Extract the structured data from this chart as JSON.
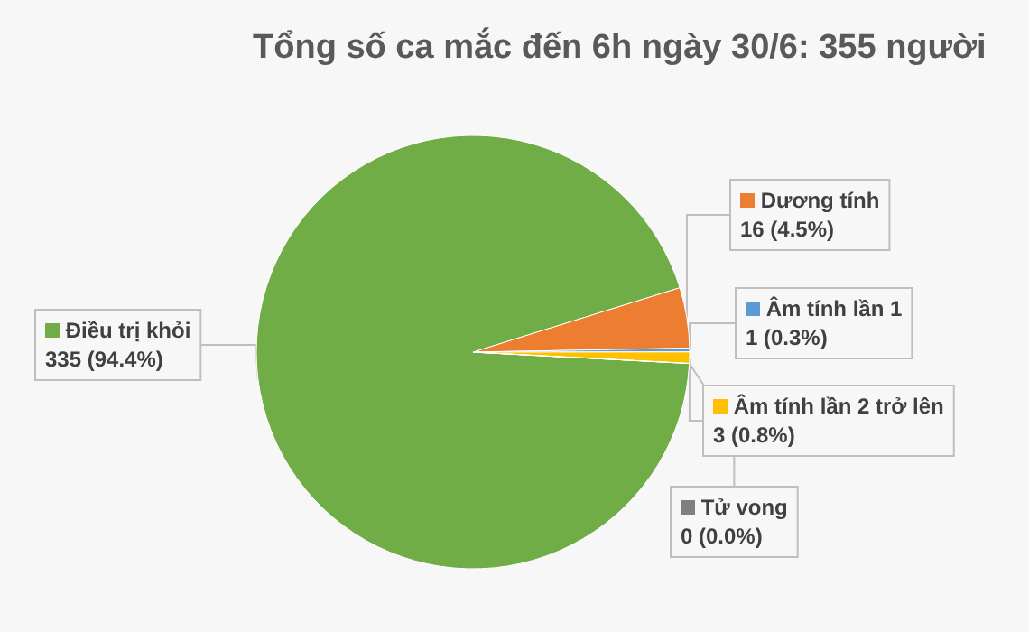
{
  "chart_data": {
    "type": "pie",
    "title": "Tổng số ca mắc đến 6h ngày 30/6: 355 người",
    "categories": [
      "Điều trị khỏi",
      "Dương tính",
      "Âm tính lần 1",
      "Âm tính lần 2 trở lên",
      "Tử vong"
    ],
    "values": [
      335,
      16,
      1,
      3,
      0
    ],
    "value_labels": [
      "335 (94.4%)",
      "16 (4.5%)",
      "1 (0.3%)",
      "3 (0.8%)",
      "0 (0.0%)"
    ],
    "colors": [
      "#70ad47",
      "#ed7d31",
      "#5b9bd5",
      "#ffc000",
      "#7f7f7f"
    ],
    "legend": "right"
  }
}
